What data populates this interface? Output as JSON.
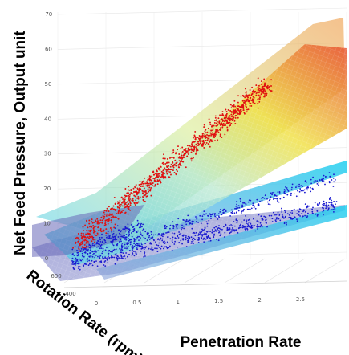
{
  "chart_data": {
    "type": "scatter",
    "subtype": "3d-scatter-with-fitted-surfaces",
    "xlabel": "Penetration Rate",
    "ylabel": "Rotation Rate (rpm)",
    "zlabel": "Net Feed Pressure, Output unit",
    "x_ticks": [
      "0",
      "0.5",
      "1",
      "1.5",
      "2",
      "2.5"
    ],
    "y_ticks": [
      "400",
      "600"
    ],
    "z_ticks": [
      "0",
      "10",
      "20",
      "30",
      "40",
      "50",
      "60",
      "70"
    ],
    "xlim": [
      0,
      2.8
    ],
    "zlim": [
      0,
      70
    ],
    "grid": true,
    "series": [
      {
        "color": "#e01010",
        "surface": "cool-to-warm gradient (cyan → yellow → red)"
      },
      {
        "color": "#1a1ad0",
        "surface": "cyan band"
      }
    ],
    "colors": {
      "red_points": "#e01010",
      "blue_points": "#1a1ad0",
      "surface_low": "#3ec8e8",
      "surface_mid": "#f0e040",
      "surface_high": "#e85030",
      "lower_surface": "#7878c0"
    }
  }
}
